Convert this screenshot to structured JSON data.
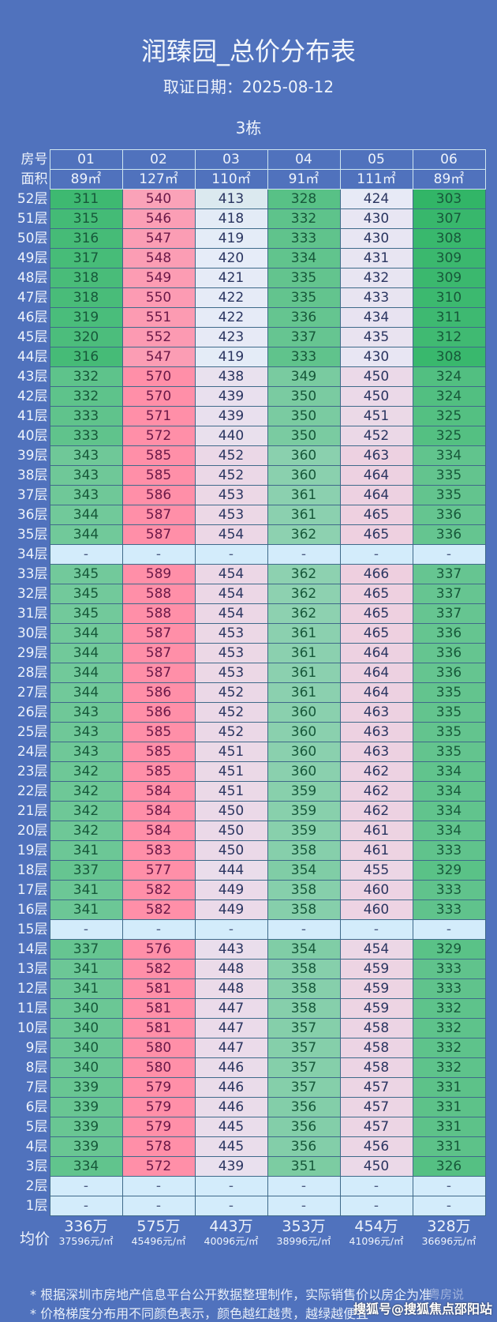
{
  "title": "润臻园_总价分布表",
  "date_line": "取证日期：2025-08-12",
  "building": "3栋",
  "header": {
    "room_label": "房号",
    "area_label": "面积",
    "rooms": [
      "01",
      "02",
      "03",
      "04",
      "05",
      "06"
    ],
    "areas": [
      "89㎡",
      "127㎡",
      "110㎡",
      "91㎡",
      "111㎡",
      "89㎡"
    ]
  },
  "avg_label": "均价",
  "averages": [
    {
      "total": "336万",
      "unit": "37596元/㎡"
    },
    {
      "total": "575万",
      "unit": "45496元/㎡"
    },
    {
      "total": "443万",
      "unit": "40096元/㎡"
    },
    {
      "total": "353万",
      "unit": "38996元/㎡"
    },
    {
      "total": "454万",
      "unit": "41096元/㎡"
    },
    {
      "total": "328万",
      "unit": "36696元/㎡"
    }
  ],
  "notes": [
    "* 根据深圳市房地产信息平台公开数据整理制作，实际销售价以房企为准",
    "* 价格梯度分布用不同颜色表示，颜色越红越贵，越绿越便宜"
  ],
  "watermark": "搜狐号@搜狐焦点邵阳站",
  "watermark2": "粤房说",
  "colors": {
    "background": "#5072bd",
    "cheap": "#2db463",
    "mid": "#e6ecf8",
    "expensive": "#ff8fa8",
    "empty": "#d3ecfb"
  },
  "chart_data": {
    "type": "heatmap",
    "title": "润臻园_总价分布表",
    "x": [
      "01",
      "02",
      "03",
      "04",
      "05",
      "06"
    ],
    "unit": "万",
    "empty_symbol": "-",
    "rows": [
      {
        "floor": "52层",
        "values": [
          311,
          540,
          413,
          328,
          424,
          303
        ]
      },
      {
        "floor": "51层",
        "values": [
          315,
          546,
          418,
          332,
          430,
          307
        ]
      },
      {
        "floor": "50层",
        "values": [
          316,
          547,
          419,
          333,
          430,
          308
        ]
      },
      {
        "floor": "49层",
        "values": [
          317,
          548,
          420,
          334,
          431,
          309
        ]
      },
      {
        "floor": "48层",
        "values": [
          318,
          549,
          421,
          335,
          432,
          309
        ]
      },
      {
        "floor": "47层",
        "values": [
          318,
          550,
          422,
          335,
          433,
          310
        ]
      },
      {
        "floor": "46层",
        "values": [
          319,
          551,
          422,
          336,
          434,
          311
        ]
      },
      {
        "floor": "45层",
        "values": [
          320,
          552,
          423,
          337,
          435,
          312
        ]
      },
      {
        "floor": "44层",
        "values": [
          316,
          547,
          419,
          333,
          430,
          308
        ]
      },
      {
        "floor": "43层",
        "values": [
          332,
          570,
          438,
          349,
          450,
          324
        ]
      },
      {
        "floor": "42层",
        "values": [
          332,
          570,
          439,
          350,
          450,
          324
        ]
      },
      {
        "floor": "41层",
        "values": [
          333,
          571,
          439,
          350,
          451,
          325
        ]
      },
      {
        "floor": "40层",
        "values": [
          333,
          572,
          440,
          350,
          452,
          325
        ]
      },
      {
        "floor": "39层",
        "values": [
          343,
          585,
          452,
          360,
          463,
          334
        ]
      },
      {
        "floor": "38层",
        "values": [
          343,
          585,
          452,
          360,
          464,
          335
        ]
      },
      {
        "floor": "37层",
        "values": [
          343,
          586,
          453,
          361,
          464,
          335
        ]
      },
      {
        "floor": "36层",
        "values": [
          344,
          587,
          453,
          361,
          465,
          336
        ]
      },
      {
        "floor": "35层",
        "values": [
          344,
          587,
          454,
          362,
          465,
          336
        ]
      },
      {
        "floor": "34层",
        "values": [
          null,
          null,
          null,
          null,
          null,
          null
        ]
      },
      {
        "floor": "33层",
        "values": [
          345,
          589,
          454,
          362,
          466,
          337
        ]
      },
      {
        "floor": "32层",
        "values": [
          345,
          588,
          454,
          362,
          465,
          337
        ]
      },
      {
        "floor": "31层",
        "values": [
          345,
          588,
          454,
          362,
          465,
          337
        ]
      },
      {
        "floor": "30层",
        "values": [
          344,
          587,
          453,
          361,
          465,
          336
        ]
      },
      {
        "floor": "29层",
        "values": [
          344,
          587,
          453,
          361,
          464,
          336
        ]
      },
      {
        "floor": "28层",
        "values": [
          344,
          587,
          453,
          361,
          464,
          336
        ]
      },
      {
        "floor": "27层",
        "values": [
          344,
          586,
          452,
          361,
          464,
          335
        ]
      },
      {
        "floor": "26层",
        "values": [
          343,
          586,
          452,
          360,
          463,
          335
        ]
      },
      {
        "floor": "25层",
        "values": [
          343,
          585,
          452,
          360,
          463,
          335
        ]
      },
      {
        "floor": "24层",
        "values": [
          343,
          585,
          451,
          360,
          463,
          335
        ]
      },
      {
        "floor": "23层",
        "values": [
          342,
          585,
          451,
          360,
          462,
          334
        ]
      },
      {
        "floor": "22层",
        "values": [
          342,
          584,
          451,
          359,
          462,
          334
        ]
      },
      {
        "floor": "21层",
        "values": [
          342,
          584,
          450,
          359,
          462,
          334
        ]
      },
      {
        "floor": "20层",
        "values": [
          342,
          584,
          450,
          359,
          461,
          334
        ]
      },
      {
        "floor": "19层",
        "values": [
          341,
          583,
          450,
          358,
          461,
          333
        ]
      },
      {
        "floor": "18层",
        "values": [
          337,
          577,
          444,
          354,
          455,
          329
        ]
      },
      {
        "floor": "17层",
        "values": [
          341,
          582,
          449,
          358,
          460,
          333
        ]
      },
      {
        "floor": "16层",
        "values": [
          341,
          582,
          449,
          358,
          460,
          333
        ]
      },
      {
        "floor": "15层",
        "values": [
          null,
          null,
          null,
          null,
          null,
          null
        ]
      },
      {
        "floor": "14层",
        "values": [
          337,
          576,
          443,
          354,
          454,
          329
        ]
      },
      {
        "floor": "13层",
        "values": [
          341,
          582,
          448,
          358,
          459,
          333
        ]
      },
      {
        "floor": "12层",
        "values": [
          341,
          581,
          448,
          358,
          459,
          333
        ]
      },
      {
        "floor": "11层",
        "values": [
          340,
          581,
          447,
          358,
          459,
          332
        ]
      },
      {
        "floor": "10层",
        "values": [
          340,
          581,
          447,
          357,
          458,
          332
        ]
      },
      {
        "floor": "9层",
        "values": [
          340,
          580,
          447,
          357,
          458,
          332
        ]
      },
      {
        "floor": "8层",
        "values": [
          340,
          580,
          446,
          357,
          458,
          332
        ]
      },
      {
        "floor": "7层",
        "values": [
          339,
          579,
          446,
          357,
          457,
          331
        ]
      },
      {
        "floor": "6层",
        "values": [
          339,
          579,
          446,
          356,
          457,
          331
        ]
      },
      {
        "floor": "5层",
        "values": [
          339,
          579,
          445,
          356,
          457,
          331
        ]
      },
      {
        "floor": "4层",
        "values": [
          339,
          578,
          445,
          356,
          456,
          331
        ]
      },
      {
        "floor": "3层",
        "values": [
          334,
          572,
          439,
          351,
          450,
          326
        ]
      },
      {
        "floor": "2层",
        "values": [
          null,
          null,
          null,
          null,
          null,
          null
        ]
      },
      {
        "floor": "1层",
        "values": [
          null,
          null,
          null,
          null,
          null,
          null
        ]
      }
    ]
  }
}
